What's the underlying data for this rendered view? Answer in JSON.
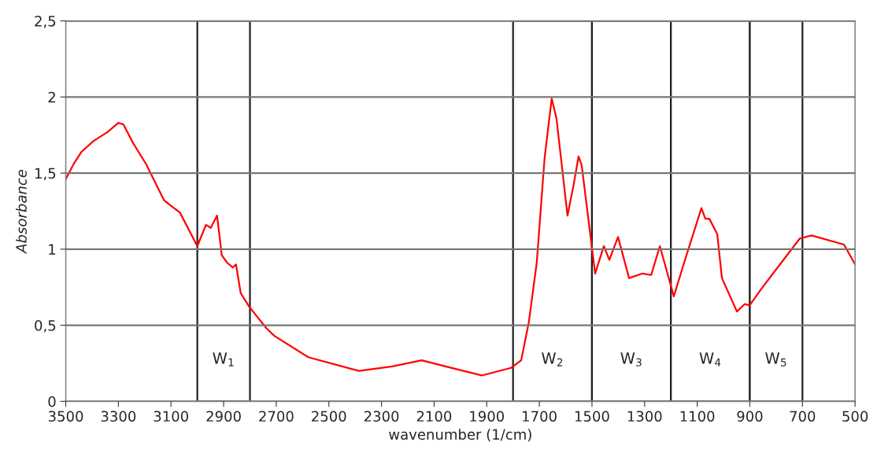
{
  "chart_data": {
    "type": "line",
    "xlabel": "wavenumber (1/cm)",
    "ylabel": "Absorbance",
    "x": [
      3500,
      3470,
      3440,
      3395,
      3341,
      3300,
      3281,
      3245,
      3195,
      3126,
      3066,
      3000,
      2967,
      2949,
      2925,
      2907,
      2886,
      2865,
      2853,
      2835,
      2802,
      2737,
      2707,
      2578,
      2386,
      2258,
      2147,
      2057,
      1919,
      1808,
      1769,
      1740,
      1710,
      1680,
      1653,
      1635,
      1593,
      1569,
      1551,
      1539,
      1488,
      1455,
      1434,
      1401,
      1359,
      1308,
      1275,
      1242,
      1189,
      1150,
      1084,
      1069,
      1054,
      1024,
      1006,
      949,
      919,
      901,
      856,
      781,
      710,
      665,
      542,
      500
    ],
    "series": [
      {
        "color": "#ff0000",
        "values": [
          1.46,
          1.56,
          1.64,
          1.71,
          1.77,
          1.83,
          1.82,
          1.7,
          1.56,
          1.32,
          1.24,
          1.02,
          1.16,
          1.14,
          1.22,
          0.96,
          0.91,
          0.88,
          0.9,
          0.71,
          0.62,
          0.48,
          0.43,
          0.29,
          0.2,
          0.23,
          0.27,
          0.23,
          0.17,
          0.22,
          0.27,
          0.52,
          0.91,
          1.6,
          1.99,
          1.86,
          1.22,
          1.43,
          1.61,
          1.55,
          0.84,
          1.02,
          0.93,
          1.08,
          0.81,
          0.84,
          0.83,
          1.02,
          0.69,
          0.91,
          1.27,
          1.2,
          1.2,
          1.1,
          0.81,
          0.59,
          0.64,
          0.63,
          0.74,
          0.91,
          1.07,
          1.09,
          1.03,
          0.9
        ]
      }
    ],
    "xlim": [
      3500,
      500
    ],
    "xticks": [
      3500,
      3300,
      3100,
      2900,
      2700,
      2500,
      2300,
      2100,
      1900,
      1700,
      1500,
      1300,
      1100,
      900,
      700,
      500
    ],
    "ylim": [
      0,
      2.5
    ],
    "yticks": [
      0,
      {
        "value": 0.5,
        "label": "0,5"
      },
      1,
      {
        "value": 1.5,
        "label": "1,5"
      },
      2,
      {
        "value": 2.5,
        "label": "2,5"
      }
    ],
    "grid": "y",
    "marker": "none",
    "line_style": "solid",
    "bands": [
      {
        "axis": "x",
        "from": 3000,
        "to": 2800,
        "label": "W$_{1}$"
      },
      {
        "axis": "x",
        "from": 1800,
        "to": 1500,
        "label": "W$_{2}$"
      },
      {
        "axis": "x",
        "from": 1500,
        "to": 1200,
        "label": "W$_{3}$"
      },
      {
        "axis": "x",
        "from": 1200,
        "to": 900,
        "label": "W$_{4}$"
      },
      {
        "axis": "x",
        "from": 900,
        "to": 700,
        "label": "W$_{5}$"
      }
    ]
  }
}
